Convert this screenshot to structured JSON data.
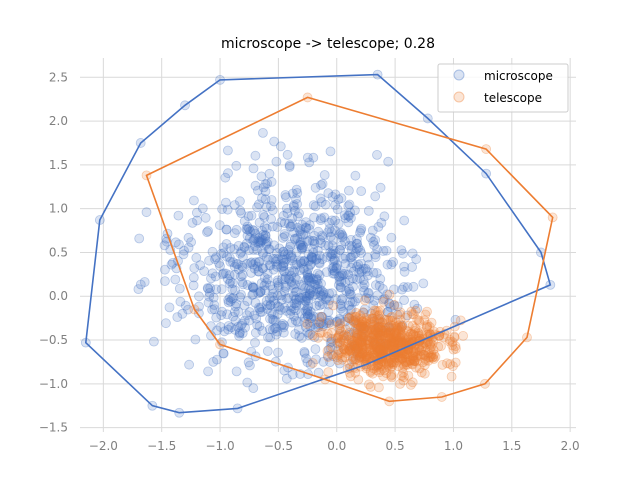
{
  "chart_data": {
    "type": "scatter",
    "title": "microscope -> telescope; 0.28",
    "xlabel": "",
    "ylabel": "",
    "xlim": [
      -2.2,
      2.05
    ],
    "ylim": [
      -1.55,
      2.72
    ],
    "xticks": [
      -2.0,
      -1.5,
      -1.0,
      -0.5,
      0.0,
      0.5,
      1.0,
      1.5,
      2.0
    ],
    "yticks": [
      -1.5,
      -1.0,
      -0.5,
      0.0,
      0.5,
      1.0,
      1.5,
      2.0,
      2.5
    ],
    "xtick_labels": [
      "−2.0",
      "−1.5",
      "−1.0",
      "−0.5",
      "0.0",
      "0.5",
      "1.0",
      "1.5",
      "2.0"
    ],
    "ytick_labels": [
      "−1.5",
      "−1.0",
      "−0.5",
      "0.0",
      "0.5",
      "1.0",
      "1.5",
      "2.0",
      "2.5"
    ],
    "grid": true,
    "legend_position": "top-right",
    "series": [
      {
        "name": "microscope",
        "color": "#4472c4",
        "center": [
          -0.35,
          0.25
        ],
        "spread": [
          0.7,
          0.75
        ],
        "n_points": 900,
        "hull": [
          [
            -2.15,
            -0.53
          ],
          [
            -2.03,
            0.87
          ],
          [
            -1.68,
            1.75
          ],
          [
            -1.3,
            2.18
          ],
          [
            -1.0,
            2.47
          ],
          [
            0.35,
            2.53
          ],
          [
            0.78,
            2.03
          ],
          [
            1.28,
            1.4
          ],
          [
            1.75,
            0.5
          ],
          [
            1.83,
            0.13
          ],
          [
            0.25,
            -0.78
          ],
          [
            -0.85,
            -1.28
          ],
          [
            -1.35,
            -1.33
          ],
          [
            -1.58,
            -1.25
          ]
        ]
      },
      {
        "name": "telescope",
        "color": "#ed7d31",
        "center": [
          0.45,
          -0.55
        ],
        "spread": [
          0.35,
          0.25
        ],
        "n_points": 700,
        "hull": [
          [
            -1.63,
            1.38
          ],
          [
            -0.25,
            2.27
          ],
          [
            1.28,
            1.68
          ],
          [
            1.85,
            0.9
          ],
          [
            1.63,
            -0.47
          ],
          [
            1.27,
            -1.0
          ],
          [
            0.9,
            -1.15
          ],
          [
            0.45,
            -1.2
          ],
          [
            -0.1,
            -0.95
          ],
          [
            -1.0,
            -0.55
          ],
          [
            -1.22,
            -0.15
          ]
        ]
      }
    ]
  }
}
